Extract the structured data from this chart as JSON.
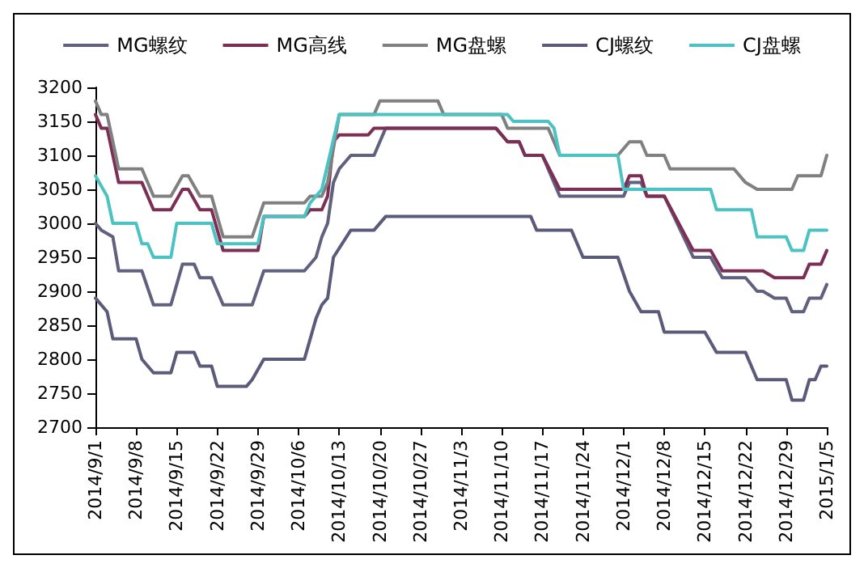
{
  "chart_data": {
    "type": "line",
    "legend": "top",
    "grid": false,
    "marker": "none",
    "line_style": "solid",
    "xlim": [
      "2014-09-01",
      "2015-01-05"
    ],
    "xticks": [
      {
        "value": "2014-09-01",
        "label": "2014/9/1"
      },
      {
        "value": "2014-09-08",
        "label": "2014/9/8"
      },
      {
        "value": "2014-09-15",
        "label": "2014/9/15"
      },
      {
        "value": "2014-09-22",
        "label": "2014/9/22"
      },
      {
        "value": "2014-09-29",
        "label": "2014/9/29"
      },
      {
        "value": "2014-10-06",
        "label": "2014/10/6"
      },
      {
        "value": "2014-10-13",
        "label": "2014/10/13"
      },
      {
        "value": "2014-10-20",
        "label": "2014/10/20"
      },
      {
        "value": "2014-10-27",
        "label": "2014/10/27"
      },
      {
        "value": "2014-11-03",
        "label": "2014/11/3"
      },
      {
        "value": "2014-11-10",
        "label": "2014/11/10"
      },
      {
        "value": "2014-11-17",
        "label": "2014/11/17"
      },
      {
        "value": "2014-11-24",
        "label": "2014/11/24"
      },
      {
        "value": "2014-12-01",
        "label": "2014/12/1"
      },
      {
        "value": "2014-12-08",
        "label": "2014/12/8"
      },
      {
        "value": "2014-12-15",
        "label": "2014/12/15"
      },
      {
        "value": "2014-12-22",
        "label": "2014/12/22"
      },
      {
        "value": "2014-12-29",
        "label": "2014/12/29"
      },
      {
        "value": "2015-01-05",
        "label": "2015/1/5"
      }
    ],
    "ylim": [
      2700,
      3200
    ],
    "yticks": [
      2700,
      2750,
      2800,
      2850,
      2900,
      2950,
      3000,
      3050,
      3100,
      3150,
      3200
    ],
    "series": [
      {
        "name": "MG螺纹",
        "color": "#60607f",
        "x": [
          "2014-09-01",
          "2014-09-02",
          "2014-09-04",
          "2014-09-05",
          "2014-09-09",
          "2014-09-11",
          "2014-09-14",
          "2014-09-16",
          "2014-09-18",
          "2014-09-19",
          "2014-09-21",
          "2014-09-23",
          "2014-09-28",
          "2014-09-30",
          "2014-10-07",
          "2014-10-09",
          "2014-10-10",
          "2014-10-11",
          "2014-10-12",
          "2014-10-13",
          "2014-10-15",
          "2014-10-19",
          "2014-10-21",
          "2014-11-09",
          "2014-11-11",
          "2014-11-13",
          "2014-11-14",
          "2014-11-17",
          "2014-11-19",
          "2014-11-20",
          "2014-12-01",
          "2014-12-02",
          "2014-12-04",
          "2014-12-05",
          "2014-12-08",
          "2014-12-13",
          "2014-12-16",
          "2014-12-18",
          "2014-12-22",
          "2014-12-24",
          "2014-12-25",
          "2014-12-27",
          "2014-12-29",
          "2014-12-30",
          "2015-01-01",
          "2015-01-02",
          "2015-01-04",
          "2015-01-05"
        ],
        "values": [
          3000,
          2990,
          2980,
          2930,
          2930,
          2880,
          2880,
          2940,
          2940,
          2920,
          2920,
          2880,
          2880,
          2930,
          2930,
          2950,
          2980,
          3000,
          3060,
          3080,
          3100,
          3100,
          3140,
          3140,
          3120,
          3120,
          3100,
          3100,
          3060,
          3040,
          3040,
          3060,
          3060,
          3040,
          3040,
          2950,
          2950,
          2920,
          2920,
          2900,
          2900,
          2890,
          2890,
          2870,
          2870,
          2890,
          2890,
          2910
        ]
      },
      {
        "name": "MG高线",
        "color": "#7d2e55",
        "x": [
          "2014-09-01",
          "2014-09-02",
          "2014-09-03",
          "2014-09-05",
          "2014-09-09",
          "2014-09-11",
          "2014-09-14",
          "2014-09-16",
          "2014-09-17",
          "2014-09-19",
          "2014-09-21",
          "2014-09-23",
          "2014-09-29",
          "2014-09-30",
          "2014-10-07",
          "2014-10-08",
          "2014-10-10",
          "2014-10-11",
          "2014-10-12",
          "2014-10-13",
          "2014-10-18",
          "2014-10-19",
          "2014-11-09",
          "2014-11-11",
          "2014-11-13",
          "2014-11-14",
          "2014-11-17",
          "2014-11-20",
          "2014-12-01",
          "2014-12-02",
          "2014-12-04",
          "2014-12-05",
          "2014-12-08",
          "2014-12-13",
          "2014-12-16",
          "2014-12-18",
          "2014-12-25",
          "2014-12-27",
          "2015-01-01",
          "2015-01-02",
          "2015-01-04",
          "2015-01-05"
        ],
        "values": [
          3160,
          3140,
          3140,
          3060,
          3060,
          3020,
          3020,
          3050,
          3050,
          3020,
          3020,
          2960,
          2960,
          3010,
          3010,
          3020,
          3020,
          3040,
          3120,
          3130,
          3130,
          3140,
          3140,
          3120,
          3120,
          3100,
          3100,
          3050,
          3050,
          3070,
          3070,
          3040,
          3040,
          2960,
          2960,
          2930,
          2930,
          2920,
          2920,
          2940,
          2940,
          2960
        ]
      },
      {
        "name": "MG盘螺",
        "color": "#808080",
        "x": [
          "2014-09-01",
          "2014-09-02",
          "2014-09-03",
          "2014-09-05",
          "2014-09-09",
          "2014-09-11",
          "2014-09-14",
          "2014-09-16",
          "2014-09-17",
          "2014-09-19",
          "2014-09-21",
          "2014-09-23",
          "2014-09-28",
          "2014-09-30",
          "2014-10-07",
          "2014-10-08",
          "2014-10-10",
          "2014-10-11",
          "2014-10-13",
          "2014-10-19",
          "2014-10-20",
          "2014-10-30",
          "2014-10-31",
          "2014-11-10",
          "2014-11-11",
          "2014-11-18",
          "2014-11-20",
          "2014-11-30",
          "2014-12-02",
          "2014-12-04",
          "2014-12-05",
          "2014-12-08",
          "2014-12-09",
          "2014-12-20",
          "2014-12-22",
          "2014-12-24",
          "2014-12-30",
          "2014-12-31",
          "2015-01-04",
          "2015-01-05"
        ],
        "values": [
          3180,
          3160,
          3160,
          3080,
          3080,
          3040,
          3040,
          3070,
          3070,
          3040,
          3040,
          2980,
          2980,
          3030,
          3030,
          3040,
          3040,
          3060,
          3160,
          3160,
          3180,
          3180,
          3160,
          3160,
          3140,
          3140,
          3100,
          3100,
          3120,
          3120,
          3100,
          3100,
          3080,
          3080,
          3060,
          3050,
          3050,
          3070,
          3070,
          3100
        ]
      },
      {
        "name": "CJ螺纹",
        "color": "#5a5a7a",
        "x": [
          "2014-09-01",
          "2014-09-03",
          "2014-09-04",
          "2014-09-08",
          "2014-09-09",
          "2014-09-11",
          "2014-09-14",
          "2014-09-15",
          "2014-09-18",
          "2014-09-19",
          "2014-09-21",
          "2014-09-22",
          "2014-09-27",
          "2014-09-28",
          "2014-09-30",
          "2014-10-07",
          "2014-10-09",
          "2014-10-10",
          "2014-10-11",
          "2014-10-12",
          "2014-10-15",
          "2014-10-19",
          "2014-10-21",
          "2014-11-15",
          "2014-11-16",
          "2014-11-22",
          "2014-11-24",
          "2014-11-30",
          "2014-12-02",
          "2014-12-04",
          "2014-12-07",
          "2014-12-08",
          "2014-12-15",
          "2014-12-17",
          "2014-12-22",
          "2014-12-24",
          "2014-12-29",
          "2014-12-30",
          "2015-01-01",
          "2015-01-02",
          "2015-01-03",
          "2015-01-04",
          "2015-01-05"
        ],
        "values": [
          2890,
          2870,
          2830,
          2830,
          2800,
          2780,
          2780,
          2810,
          2810,
          2790,
          2790,
          2760,
          2760,
          2770,
          2800,
          2800,
          2860,
          2880,
          2890,
          2950,
          2990,
          2990,
          3010,
          3010,
          2990,
          2990,
          2950,
          2950,
          2900,
          2870,
          2870,
          2840,
          2840,
          2810,
          2810,
          2770,
          2770,
          2740,
          2740,
          2770,
          2770,
          2790,
          2790
        ]
      },
      {
        "name": "CJ盘螺",
        "color": "#4cc3c3",
        "x": [
          "2014-09-01",
          "2014-09-03",
          "2014-09-04",
          "2014-09-08",
          "2014-09-09",
          "2014-09-10",
          "2014-09-11",
          "2014-09-14",
          "2014-09-15",
          "2014-09-21",
          "2014-09-22",
          "2014-09-29",
          "2014-09-30",
          "2014-10-07",
          "2014-10-08",
          "2014-10-10",
          "2014-10-13",
          "2014-11-11",
          "2014-11-12",
          "2014-11-18",
          "2014-11-19",
          "2014-11-20",
          "2014-11-30",
          "2014-12-01",
          "2014-12-16",
          "2014-12-17",
          "2014-12-23",
          "2014-12-24",
          "2014-12-29",
          "2014-12-30",
          "2015-01-01",
          "2015-01-02",
          "2015-01-05"
        ],
        "values": [
          3070,
          3040,
          3000,
          3000,
          2970,
          2970,
          2950,
          2950,
          3000,
          3000,
          2970,
          2970,
          3010,
          3010,
          3030,
          3050,
          3160,
          3160,
          3150,
          3150,
          3140,
          3100,
          3100,
          3050,
          3050,
          3020,
          3020,
          2980,
          2980,
          2960,
          2960,
          2990,
          2990
        ]
      }
    ]
  }
}
